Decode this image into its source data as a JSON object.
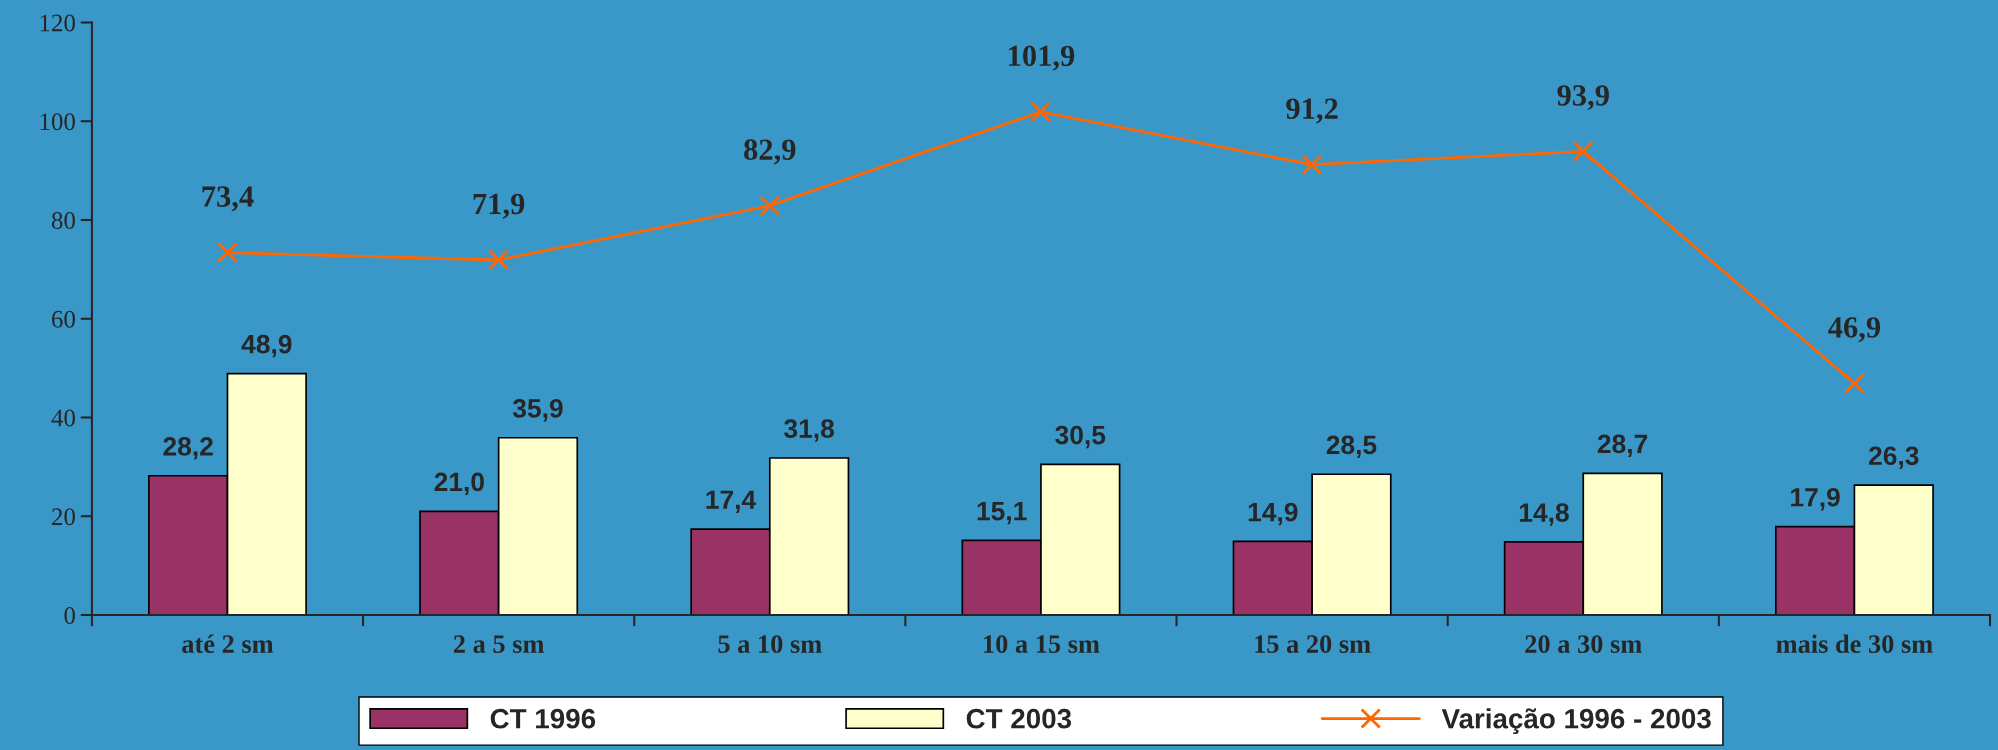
{
  "chart_data": {
    "type": "bar",
    "categories": [
      "até 2 sm",
      "2 a 5 sm",
      "5 a 10 sm",
      "10 a 15 sm",
      "15 a 20 sm",
      "20 a 30 sm",
      "mais de 30 sm"
    ],
    "series": [
      {
        "name": "CT 1996",
        "color": "#993366",
        "values": [
          28.2,
          21.0,
          17.4,
          15.1,
          14.9,
          14.8,
          17.9
        ],
        "value_labels": [
          "28,2",
          "21,0",
          "17,4",
          "15,1",
          "14,9",
          "14,8",
          "17,9"
        ]
      },
      {
        "name": "CT 2003",
        "color": "#ffffcc",
        "values": [
          48.9,
          35.9,
          31.8,
          30.5,
          28.5,
          28.7,
          26.3
        ],
        "value_labels": [
          "48,9",
          "35,9",
          "31,8",
          "30,5",
          "28,5",
          "28,7",
          "26,3"
        ]
      },
      {
        "name": "Variação 1996 - 2003",
        "type": "line",
        "color": "#ff6600",
        "marker": "cross",
        "values": [
          73.4,
          71.9,
          82.9,
          101.9,
          91.2,
          93.9,
          46.9
        ],
        "value_labels": [
          "73,4",
          "71,9",
          "82,9",
          "101,9",
          "91,2",
          "93,9",
          "46,9"
        ]
      }
    ],
    "ylim": [
      0,
      120
    ],
    "yticks": [
      0,
      20,
      40,
      60,
      80,
      100,
      120
    ],
    "grid": false,
    "legend": "bottom"
  }
}
